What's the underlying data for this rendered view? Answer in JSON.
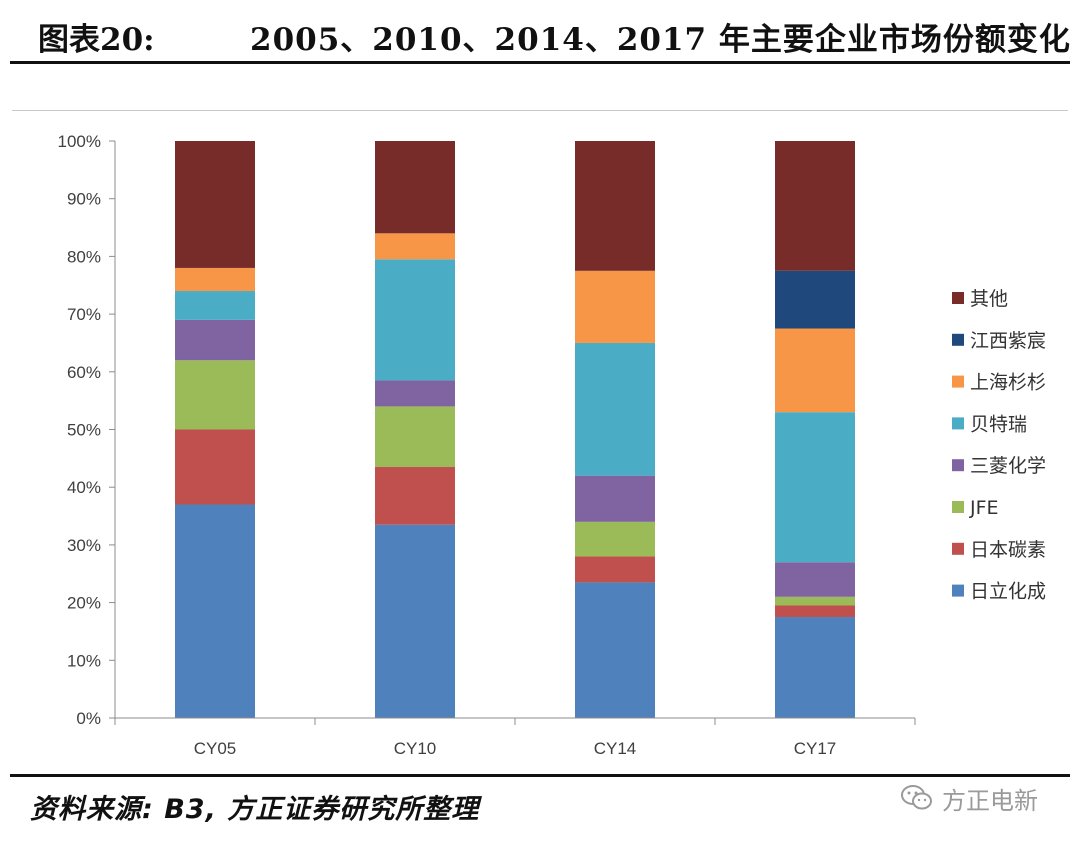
{
  "header": {
    "figure_label": "图表20:",
    "title": "2005、2010、2014、2017 年主要企业市场份额变化"
  },
  "footer": {
    "source": "资料来源: B3, 方正证券研究所整理",
    "watermark": "方正电新",
    "watermark_icon": "wechat-icon"
  },
  "chart_data": {
    "type": "bar",
    "stacked": true,
    "categories": [
      "CY05",
      "CY10",
      "CY14",
      "CY17"
    ],
    "ylim": [
      0,
      100
    ],
    "yticks": [
      "0%",
      "10%",
      "20%",
      "30%",
      "40%",
      "50%",
      "60%",
      "70%",
      "80%",
      "90%",
      "100%"
    ],
    "grid": false,
    "legend_position": "right",
    "series": [
      {
        "name": "日立化成",
        "color": "#4F81BD",
        "values": [
          37,
          33.5,
          23.5,
          17.5
        ]
      },
      {
        "name": "日本碳素",
        "color": "#C0504D",
        "values": [
          13,
          10,
          4.5,
          2
        ]
      },
      {
        "name": "JFE",
        "color": "#9BBB59",
        "values": [
          12,
          10.5,
          6,
          1.5
        ]
      },
      {
        "name": "三菱化学",
        "color": "#8064A2",
        "values": [
          7,
          4.5,
          8,
          6
        ]
      },
      {
        "name": "贝特瑞",
        "color": "#4BACC6",
        "values": [
          5,
          21,
          23,
          26
        ]
      },
      {
        "name": "上海杉杉",
        "color": "#F79646",
        "values": [
          4,
          4.5,
          12.5,
          14.5
        ]
      },
      {
        "name": "江西紫宸",
        "color": "#1F497D",
        "values": [
          0,
          0,
          0,
          10
        ]
      },
      {
        "name": "其他",
        "color": "#772C2A",
        "values": [
          22,
          16,
          22.5,
          22.5
        ]
      }
    ]
  }
}
